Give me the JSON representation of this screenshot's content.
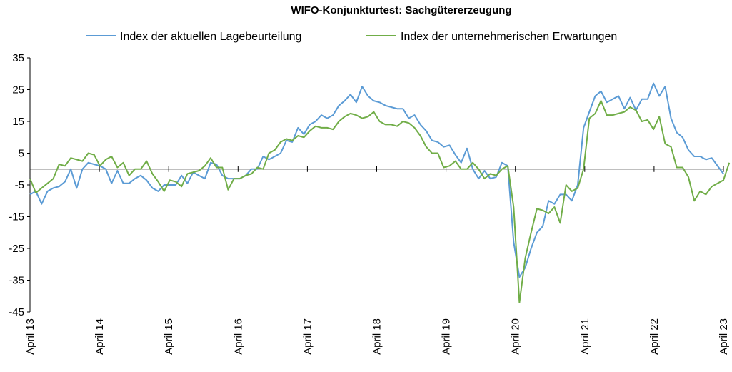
{
  "chart_data": {
    "type": "line",
    "title": "WIFO-Konjunkturtest: Sachgütererzeugung",
    "xlabel": "",
    "ylabel": "",
    "ylim": [
      -45,
      35
    ],
    "yticks": [
      35,
      25,
      15,
      5,
      -5,
      -15,
      -25,
      -35,
      -45
    ],
    "xticks": [
      "April 13",
      "April 14",
      "April 15",
      "April 16",
      "April 17",
      "April 18",
      "April 19",
      "April 20",
      "April 21",
      "April 22",
      "April 23"
    ],
    "legend_position": "top",
    "grid": false,
    "series": [
      {
        "name": "Index der aktuellen Lagebeurteilung",
        "color": "#5B9BD5",
        "values": [
          -8,
          -7,
          -11,
          -7,
          -6,
          -5.5,
          -4,
          0,
          -6,
          0,
          2,
          1.5,
          1,
          0,
          -4.5,
          -0.5,
          -4.5,
          -4.5,
          -3,
          -2,
          -3.5,
          -6,
          -7,
          -5,
          -5,
          -5,
          -2,
          -4.5,
          -1,
          -2,
          -3,
          2,
          1.5,
          -2,
          -3,
          -3,
          -3,
          -2,
          0,
          0,
          4,
          3,
          4,
          5,
          9,
          8.5,
          13,
          11,
          14,
          15,
          17,
          16,
          17,
          20,
          21.5,
          23.5,
          21,
          26,
          23,
          21.5,
          21,
          20,
          19.5,
          19,
          19,
          16,
          17,
          14,
          12,
          9,
          8.5,
          7,
          7.5,
          4.5,
          2,
          6.5,
          0,
          -3,
          -0.5,
          -3,
          -2.5,
          2,
          1,
          -23,
          -34,
          -31,
          -25,
          -20,
          -18,
          -10,
          -11,
          -8,
          -8,
          -10,
          -5,
          13,
          18,
          23,
          24.5,
          21,
          22,
          23,
          19,
          22.5,
          18.5,
          22,
          22,
          27,
          23,
          26,
          16,
          11.5,
          10,
          6,
          4,
          4,
          3,
          3.5,
          1,
          -1.5
        ]
      },
      {
        "name": "Index der unternehmerischen Erwartungen",
        "color": "#70AD47",
        "values": [
          -3,
          -7.5,
          -6,
          -4.5,
          -3,
          1.5,
          1,
          3.5,
          3,
          2.5,
          5,
          4.5,
          1,
          3,
          4,
          0.5,
          2,
          -2,
          0,
          0,
          2.5,
          -1.5,
          -4,
          -7,
          -3.5,
          -4,
          -5.5,
          -1.5,
          -1,
          -0.5,
          1,
          3.5,
          0.5,
          0.5,
          -6.5,
          -3,
          -3,
          -2,
          -1.5,
          0.5,
          0,
          5,
          6,
          8.5,
          9.5,
          9,
          10.5,
          10,
          12,
          13.5,
          13,
          13,
          12.5,
          15,
          16.5,
          17.5,
          17,
          16,
          16.5,
          18,
          15,
          14,
          14,
          13.5,
          15,
          14.5,
          13,
          10.5,
          7,
          5,
          5,
          0.5,
          1,
          2.5,
          0,
          0,
          2,
          0,
          -3,
          -1.5,
          -2,
          0,
          1,
          -12,
          -42,
          -28,
          -20,
          -12.5,
          -13,
          -14,
          -12,
          -17,
          -5,
          -7,
          -6,
          0,
          16,
          17.5,
          21.5,
          17,
          17,
          17.5,
          18,
          19.5,
          18.5,
          15,
          15.5,
          12.5,
          16.5,
          8,
          7,
          0.5,
          0.5,
          -2.5,
          -10,
          -7,
          -8,
          -5.5,
          -4.5,
          -3.5,
          2
        ]
      }
    ]
  }
}
